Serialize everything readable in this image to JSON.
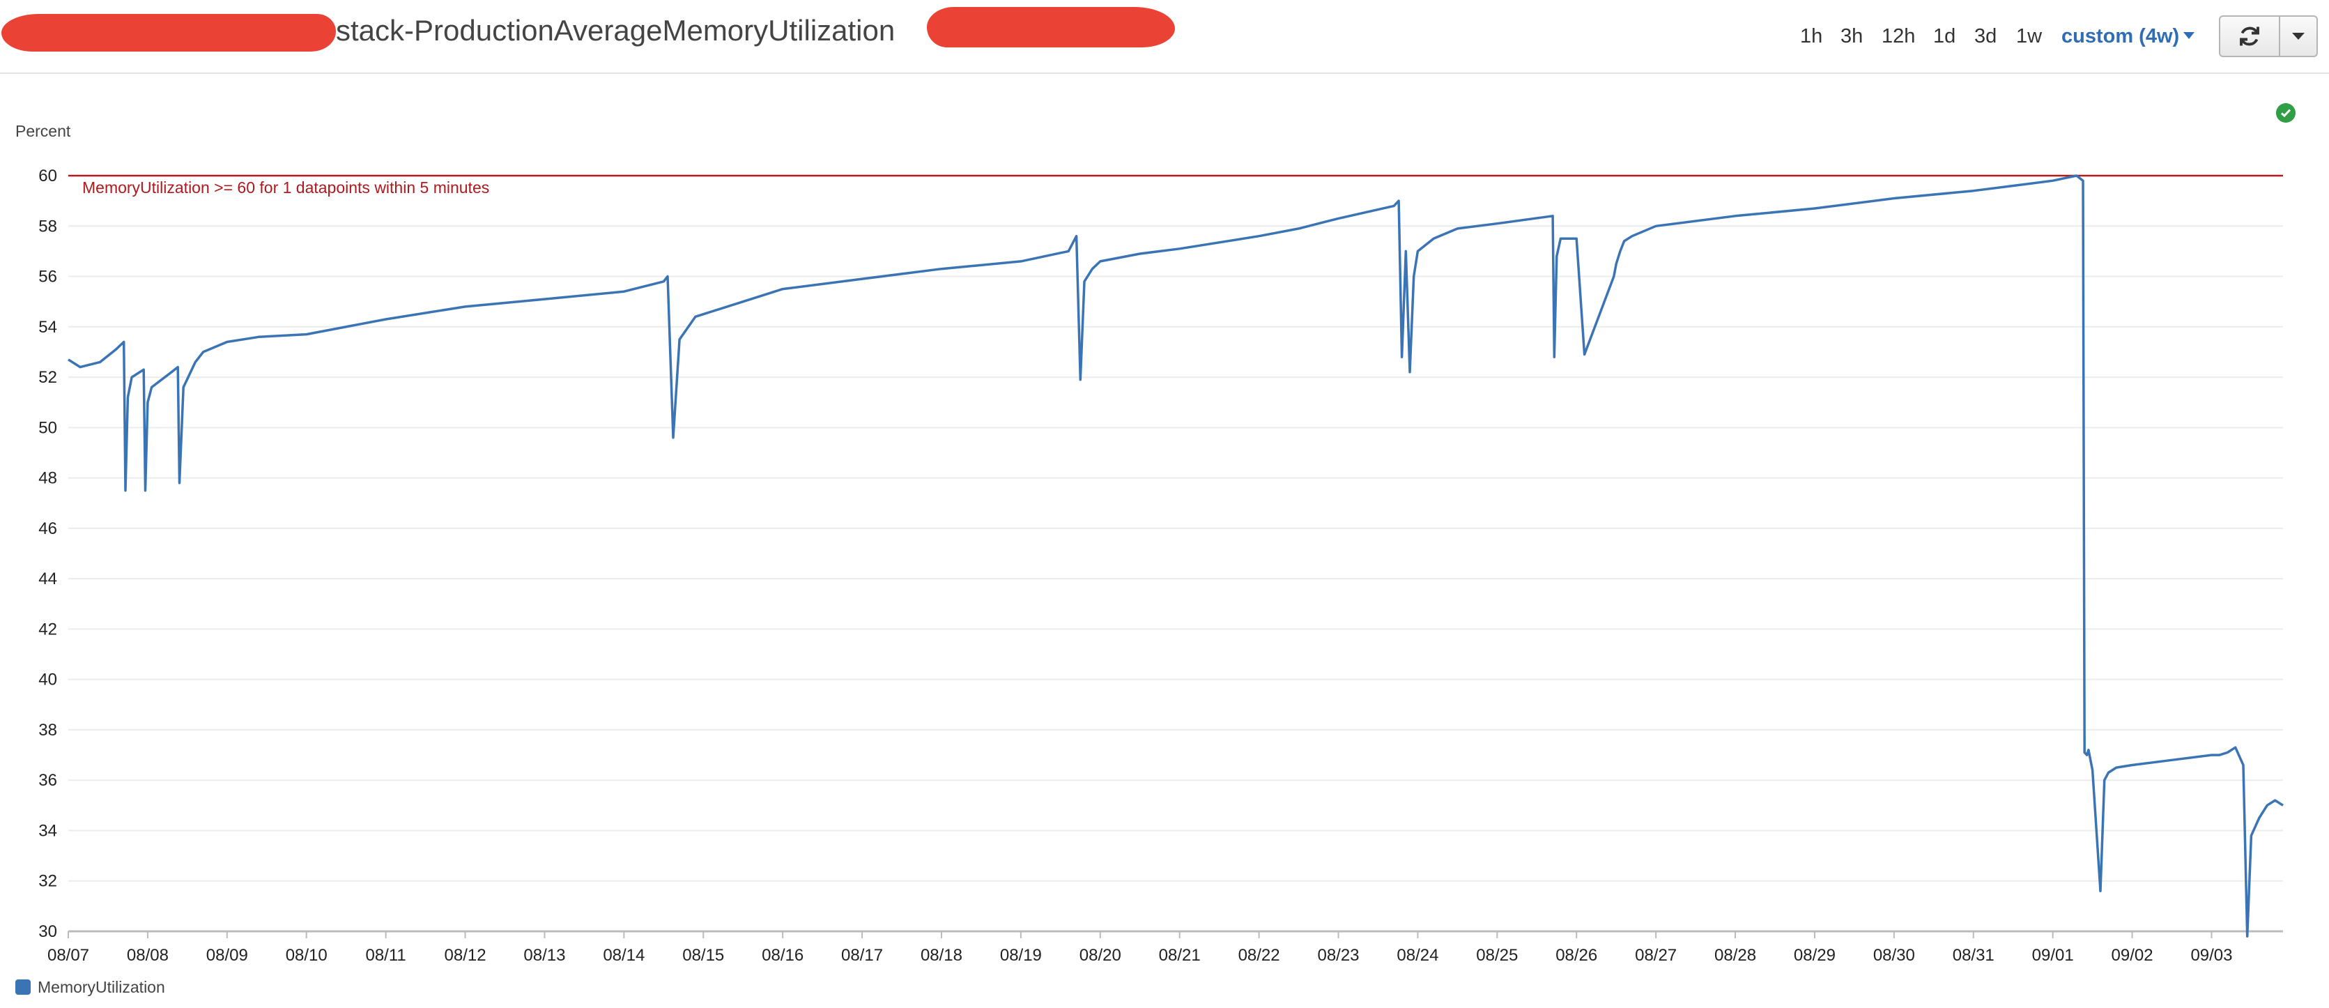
{
  "header": {
    "title": "stack-ProductionAverageMemoryUtilization",
    "time_ranges": [
      "1h",
      "3h",
      "12h",
      "1d",
      "3d",
      "1w"
    ],
    "active_range": "custom (4w)"
  },
  "colors": {
    "series": "#3a74b5",
    "threshold": "#b0191e",
    "accent": "#2f6db5",
    "status_ok": "#2f9e44"
  },
  "icons": {
    "refresh": "refresh-icon",
    "dropdown": "chevron-down-icon",
    "status": "check-circle-icon"
  },
  "chart_data": {
    "type": "line",
    "ylabel": "Percent",
    "ylim": [
      30,
      60
    ],
    "yticks": [
      30,
      32,
      34,
      36,
      38,
      40,
      42,
      44,
      46,
      48,
      50,
      52,
      54,
      56,
      58,
      60
    ],
    "x_ticks": [
      "08/07",
      "08/08",
      "08/09",
      "08/10",
      "08/11",
      "08/12",
      "08/13",
      "08/14",
      "08/15",
      "08/16",
      "08/17",
      "08/18",
      "08/19",
      "08/20",
      "08/21",
      "08/22",
      "08/23",
      "08/24",
      "08/25",
      "08/26",
      "08/27",
      "08/28",
      "08/29",
      "08/30",
      "08/31",
      "09/01",
      "09/02",
      "09/03"
    ],
    "x_range_days": [
      0,
      27.9
    ],
    "grid": true,
    "legend_position": "bottom-left",
    "threshold": {
      "value": 60,
      "label": "MemoryUtilization >= 60 for 1 datapoints within 5 minutes"
    },
    "series": [
      {
        "name": "MemoryUtilization",
        "x": [
          0,
          0.15,
          0.4,
          0.6,
          0.7,
          0.72,
          0.75,
          0.8,
          0.95,
          0.97,
          1.0,
          1.05,
          1.3,
          1.38,
          1.4,
          1.45,
          1.6,
          1.7,
          2.0,
          2.4,
          3.0,
          4.0,
          5.0,
          6.0,
          7.0,
          7.5,
          7.55,
          7.62,
          7.7,
          7.9,
          8.5,
          9.0,
          10.0,
          11.0,
          12.0,
          12.6,
          12.65,
          12.7,
          12.75,
          12.8,
          12.9,
          13.0,
          13.5,
          14.0,
          15.0,
          15.5,
          16.0,
          16.7,
          16.76,
          16.8,
          16.85,
          16.9,
          16.95,
          17.0,
          17.2,
          17.5,
          18.0,
          18.7,
          18.72,
          18.75,
          18.8,
          18.9,
          19.0,
          19.1,
          19.47,
          19.5,
          19.55,
          19.6,
          19.7,
          20.0,
          21.0,
          22.0,
          23.0,
          24.0,
          24.5,
          25.0,
          25.3,
          25.38,
          25.4,
          25.43,
          25.45,
          25.5,
          25.6,
          25.65,
          25.7,
          25.8,
          26.0,
          26.5,
          27.0,
          27.1,
          27.2,
          27.3,
          27.4,
          27.45,
          27.5,
          27.6,
          27.7,
          27.8,
          27.9
        ],
        "y": [
          52.7,
          52.4,
          52.6,
          53.1,
          53.4,
          47.5,
          51.2,
          52.0,
          52.3,
          47.5,
          51.0,
          51.6,
          52.2,
          52.4,
          47.8,
          51.6,
          52.6,
          53.0,
          53.4,
          53.6,
          53.7,
          54.3,
          54.8,
          55.1,
          55.4,
          55.8,
          56.0,
          49.6,
          53.5,
          54.4,
          55.0,
          55.5,
          55.9,
          56.3,
          56.6,
          57.0,
          57.3,
          57.6,
          51.9,
          55.8,
          56.3,
          56.6,
          56.9,
          57.1,
          57.6,
          57.9,
          58.3,
          58.8,
          59.0,
          52.8,
          57.0,
          52.2,
          56.0,
          57.0,
          57.5,
          57.9,
          58.1,
          58.4,
          52.8,
          56.8,
          57.5,
          57.5,
          57.5,
          52.9,
          56.0,
          56.5,
          57.0,
          57.4,
          57.6,
          58.0,
          58.4,
          58.7,
          59.1,
          59.4,
          59.6,
          59.8,
          60.0,
          59.8,
          37.1,
          37.0,
          37.2,
          36.4,
          31.6,
          36.0,
          36.3,
          36.5,
          36.6,
          36.8,
          37.0,
          37.0,
          37.1,
          37.3,
          36.6,
          29.8,
          33.8,
          34.5,
          35.0,
          35.2,
          35.0
        ]
      }
    ]
  }
}
